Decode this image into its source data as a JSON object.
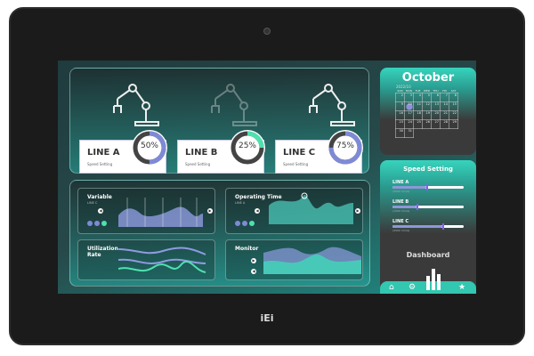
{
  "brand": "iEi",
  "lines": [
    {
      "name": "LINE A",
      "sub": "Speed Setting",
      "percent": 50,
      "percent_label": "50%",
      "color": "#7f8ad6",
      "robot_dim": false
    },
    {
      "name": "LINE B",
      "sub": "Speed Setting",
      "percent": 25,
      "percent_label": "25%",
      "color": "#4fe0b0",
      "robot_dim": true
    },
    {
      "name": "LINE C",
      "sub": "Speed Setting",
      "percent": 75,
      "percent_label": "75%",
      "color": "#7f8ad6",
      "robot_dim": false
    }
  ],
  "charts": {
    "variable": {
      "title": "Variable",
      "sub": "LINE C"
    },
    "operating": {
      "title": "Operating Time",
      "sub": "LINE A"
    },
    "utilization": {
      "title": "Utilization Rate"
    },
    "monitor": {
      "title": "Monitor"
    }
  },
  "calendar": {
    "month": "October",
    "year_month": "2022/10",
    "days": [
      "SUN",
      "MON",
      "TUE",
      "WED",
      "THU",
      "FRI",
      "SAT"
    ],
    "weeks": [
      [
        "2",
        "3",
        "4",
        "5",
        "6",
        "7",
        "8"
      ],
      [
        "9",
        "10",
        "11",
        "12",
        "13",
        "14",
        "15"
      ],
      [
        "16",
        "17",
        "18",
        "19",
        "20",
        "21",
        "22"
      ],
      [
        "23",
        "24",
        "25",
        "26",
        "27",
        "28",
        "29"
      ],
      [
        "30",
        "31"
      ]
    ],
    "selected": "10"
  },
  "speed": {
    "title": "Speed Setting",
    "items": [
      {
        "name": "LINE A",
        "value": "(3000 mm/s)",
        "level": 0.48
      },
      {
        "name": "LINE B",
        "value": "(1500 mm/s)",
        "level": 0.34
      },
      {
        "name": "LINE C",
        "value": "(4500 mm/s)",
        "level": 0.7
      }
    ]
  },
  "dashboard_label": "Dashboard",
  "nav": [
    "home-icon",
    "gear-icon",
    "chart-icon",
    "star-icon"
  ]
}
